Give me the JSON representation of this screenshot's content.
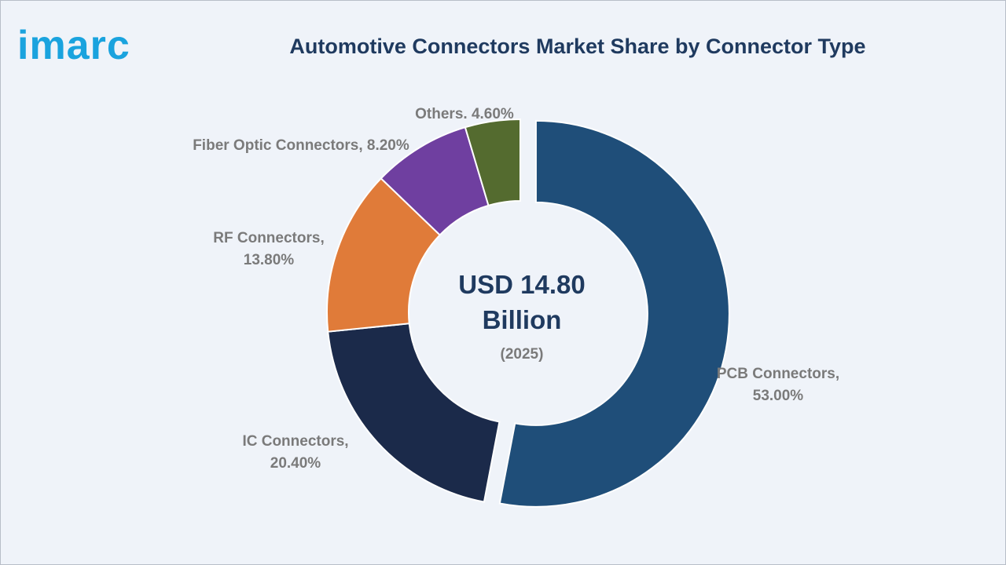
{
  "logo": {
    "text": "imarc",
    "color": "#1aa3de"
  },
  "chart_data": {
    "type": "pie",
    "style": "donut",
    "title": "Automotive Connectors Market Share by Connector Type",
    "legend": "none",
    "slices": [
      {
        "name": "PCB Connectors",
        "value": 53.0,
        "label_line1": "PCB Connectors,",
        "label_line2": "53.00%",
        "color": "#1f4e79",
        "exploded": true
      },
      {
        "name": "IC Connectors",
        "value": 20.4,
        "label_line1": "IC Connectors,",
        "label_line2": "20.40%",
        "color": "#1b2a4a",
        "exploded": false
      },
      {
        "name": "RF Connectors",
        "value": 13.8,
        "label_line1": "RF Connectors,",
        "label_line2": "13.80%",
        "color": "#e07b39",
        "exploded": false
      },
      {
        "name": "Fiber Optic Connectors",
        "value": 8.2,
        "label_line1": "Fiber Optic Connectors, 8.20%",
        "label_line2": "",
        "color": "#6f3fa0",
        "exploded": false
      },
      {
        "name": "Others",
        "value": 4.6,
        "label_line1": "Others. 4.60%",
        "label_line2": "",
        "color": "#546b2f",
        "exploded": false
      }
    ],
    "center": {
      "line1": "USD 14.80",
      "line2": "Billion",
      "line3": "(2025)"
    }
  }
}
